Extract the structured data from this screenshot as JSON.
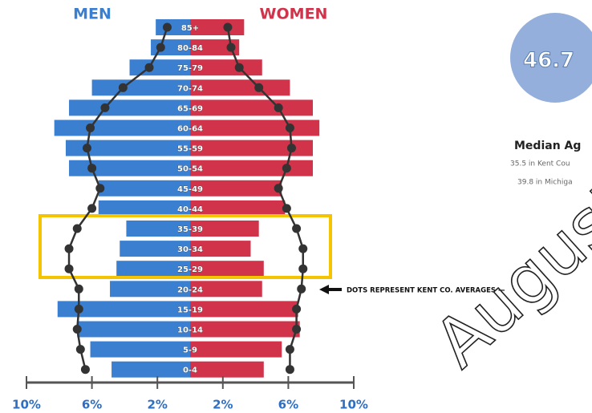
{
  "chart_data": {
    "type": "pyramid",
    "categories": [
      "85+",
      "80-84",
      "75-79",
      "70-74",
      "65-69",
      "60-64",
      "55-59",
      "50-54",
      "45-49",
      "40-44",
      "35-39",
      "30-34",
      "25-29",
      "20-24",
      "15-19",
      "10-14",
      "5-9",
      "0-4"
    ],
    "series": [
      {
        "name": "MEN",
        "color": "#3b7fd0",
        "values": [
          2.1,
          2.4,
          3.7,
          6.0,
          7.4,
          8.3,
          7.6,
          7.4,
          5.6,
          5.6,
          3.9,
          4.3,
          4.5,
          4.9,
          8.1,
          6.9,
          6.1,
          4.8
        ],
        "averages": [
          1.4,
          1.8,
          2.5,
          4.1,
          5.2,
          6.1,
          6.3,
          6.0,
          5.5,
          6.0,
          6.9,
          7.4,
          7.4,
          6.8,
          6.8,
          6.9,
          6.7,
          6.4
        ]
      },
      {
        "name": "WOMEN",
        "color": "#d0334a",
        "values": [
          3.3,
          3.0,
          4.4,
          6.1,
          7.5,
          7.9,
          7.5,
          7.5,
          5.6,
          5.8,
          4.2,
          3.7,
          4.5,
          4.4,
          6.6,
          6.7,
          5.6,
          4.5
        ],
        "averages": [
          2.3,
          2.5,
          3.0,
          4.2,
          5.4,
          6.1,
          6.2,
          5.9,
          5.4,
          5.9,
          6.5,
          6.9,
          6.9,
          6.8,
          6.5,
          6.5,
          6.1,
          6.1
        ]
      }
    ],
    "xlim": [
      -10,
      10
    ],
    "xticks": [
      {
        "value": -10,
        "label": "10%"
      },
      {
        "value": -6,
        "label": "6%"
      },
      {
        "value": -2,
        "label": "2%"
      },
      {
        "value": 2,
        "label": "2%"
      },
      {
        "value": 6,
        "label": "6%"
      },
      {
        "value": 10,
        "label": "10%"
      }
    ],
    "annotation": "DOTS REPRESENT KENT CO. AVERAGES —"
  },
  "sidebar": {
    "median_value": 46.7,
    "label": "Median Ag",
    "notes": [
      "35.5 in Kent Cou",
      "39.8 in Michiga"
    ]
  },
  "watermark": "August"
}
